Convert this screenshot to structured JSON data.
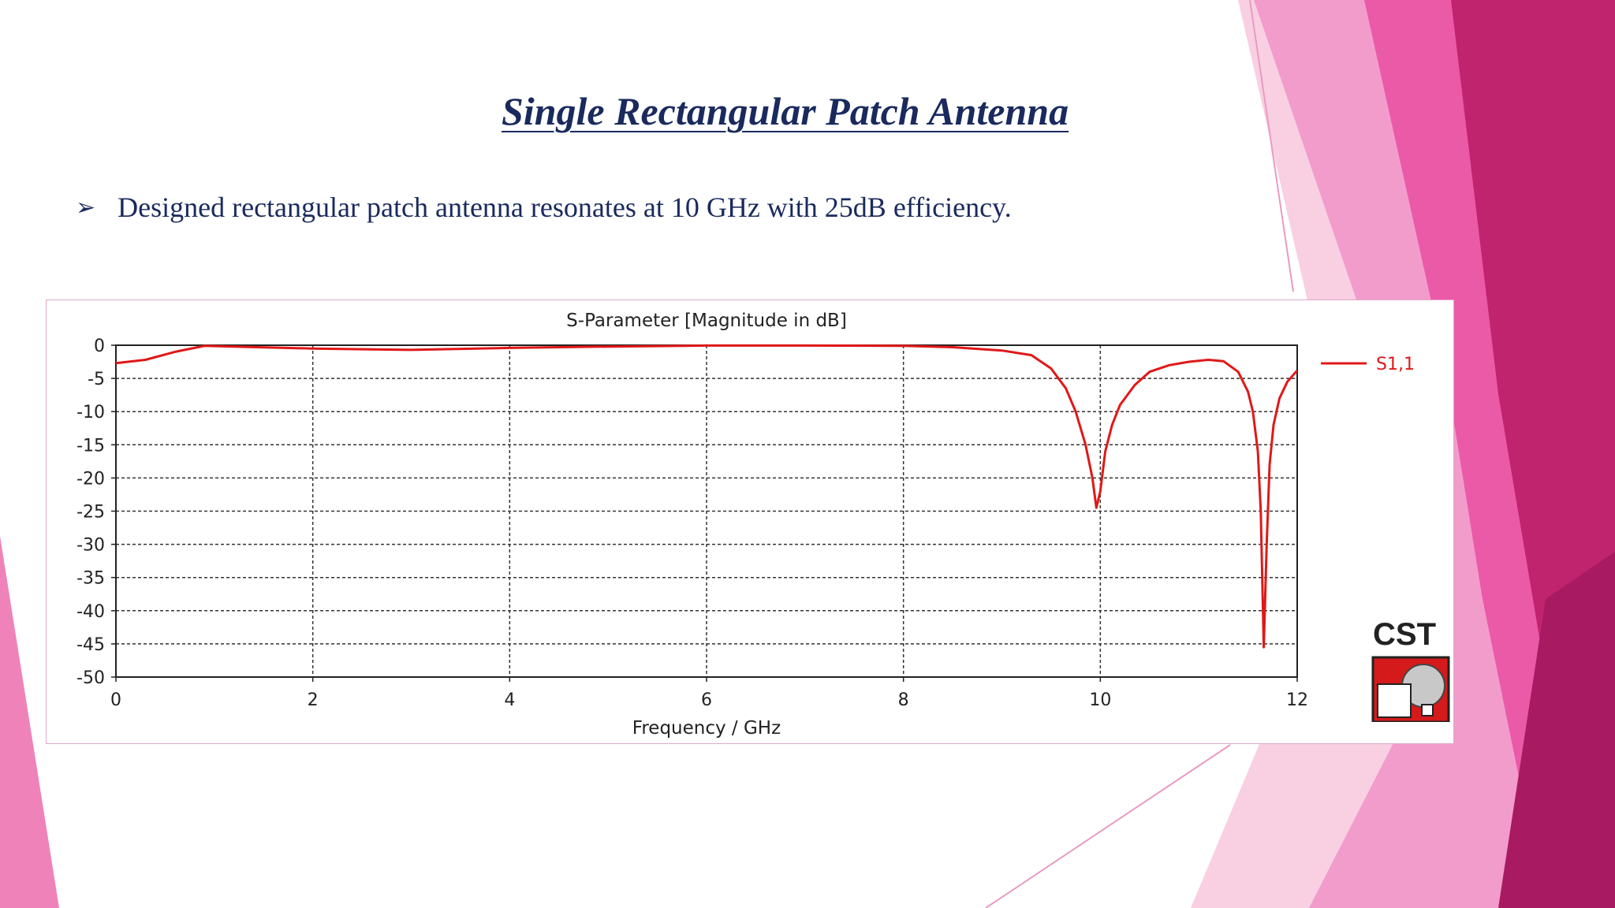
{
  "slide": {
    "title": "Single Rectangular Patch Antenna",
    "bullet": "Designed rectangular patch antenna resonates at 10 GHz with 25dB efficiency."
  },
  "colors": {
    "title_text": "#1a2a5e",
    "series": "#e01818",
    "pink_light": "#f7c4dc",
    "pink_mid": "#f090c0",
    "pink_hot": "#e7469a",
    "magenta_dark": "#be1f6e"
  },
  "logo": {
    "text": "CST"
  },
  "chart_data": {
    "type": "line",
    "title": "S-Parameter [Magnitude in dB]",
    "xlabel": "Frequency / GHz",
    "ylabel": "",
    "xlim": [
      0,
      12
    ],
    "ylim": [
      -50,
      0
    ],
    "xticks": [
      0,
      2,
      4,
      6,
      8,
      10,
      12
    ],
    "yticks": [
      0,
      -5,
      -10,
      -15,
      -20,
      -25,
      -30,
      -35,
      -40,
      -45,
      -50
    ],
    "grid": true,
    "legend": "right",
    "series": [
      {
        "name": "S1,1",
        "x": [
          0,
          0.3,
          0.6,
          0.9,
          1.2,
          2,
          3,
          4,
          5,
          6,
          7,
          8,
          8.5,
          9,
          9.3,
          9.5,
          9.65,
          9.75,
          9.85,
          9.92,
          9.96,
          10.0,
          10.05,
          10.12,
          10.2,
          10.35,
          10.5,
          10.7,
          10.9,
          11.1,
          11.25,
          11.4,
          11.5,
          11.55,
          11.6,
          11.63,
          11.66,
          11.69,
          11.72,
          11.76,
          11.82,
          11.9,
          12.0
        ],
        "y": [
          -2.7,
          -2.2,
          -1,
          -0.1,
          -0.2,
          -0.5,
          -0.7,
          -0.4,
          -0.2,
          -0.05,
          -0.05,
          -0.1,
          -0.3,
          -0.8,
          -1.5,
          -3.5,
          -6.5,
          -10,
          -15,
          -20,
          -24.5,
          -22,
          -16,
          -12,
          -9,
          -6,
          -4,
          -3,
          -2.5,
          -2.2,
          -2.4,
          -4,
          -7,
          -10,
          -16,
          -25,
          -45.5,
          -30,
          -18,
          -12,
          -8,
          -5.5,
          -3.8
        ]
      }
    ]
  }
}
